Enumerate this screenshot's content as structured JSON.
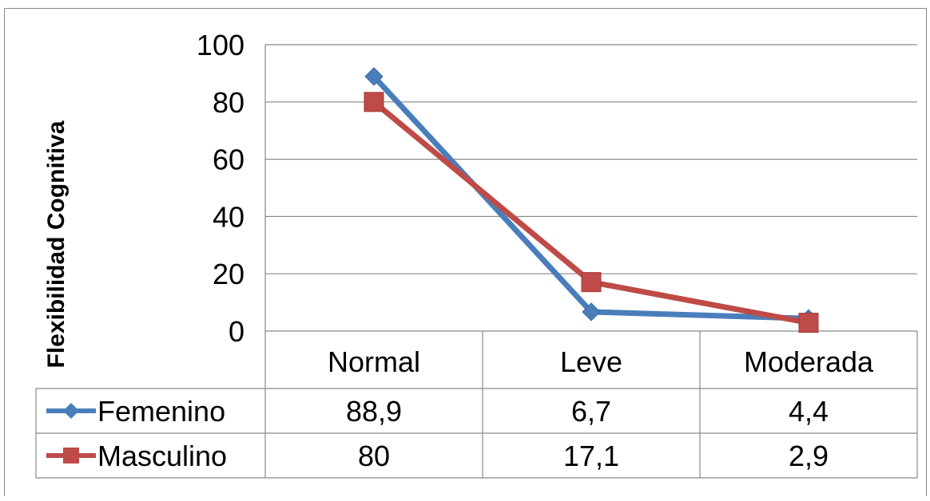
{
  "chart_data": {
    "type": "line",
    "categories": [
      "Normal",
      "Leve",
      "Moderada"
    ],
    "series": [
      {
        "name": "Femenino",
        "values": [
          88.9,
          6.7,
          4.4
        ],
        "labels": [
          "88,9",
          "6,7",
          "4,4"
        ],
        "color": "#4a7ebb",
        "marker": "diamond"
      },
      {
        "name": "Masculino",
        "values": [
          80,
          17.1,
          2.9
        ],
        "labels": [
          "80",
          "17,1",
          "2,9"
        ],
        "color": "#be4b48",
        "marker": "square"
      }
    ],
    "ylabel": "Flexibilidad Cognitiva",
    "ylim": [
      0,
      100
    ],
    "yticks": [
      0,
      20,
      40,
      60,
      80,
      100
    ],
    "grid": true,
    "legend": "data-table"
  }
}
